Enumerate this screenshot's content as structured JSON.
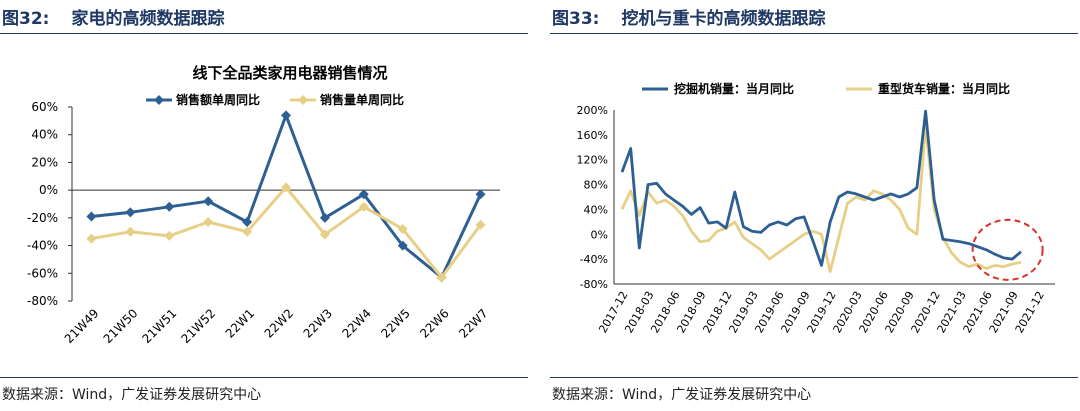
{
  "left": {
    "fig_num": "图32:",
    "fig_title": "家电的高频数据跟踪",
    "source": "数据来源：Wind，广发证券发展研究中心"
  },
  "right": {
    "fig_num": "图33:",
    "fig_title": "挖机与重卡的高频数据跟踪",
    "source": "数据来源：Wind，广发证券发展研究中心"
  },
  "colors": {
    "navy": "#2e5f93",
    "gold": "#e8cf86",
    "title": "#1f3864",
    "highlight": "#d9312b"
  },
  "chart_data": [
    {
      "type": "line",
      "title": "线下全品类家用电器销售情况",
      "xlabel": "",
      "ylabel": "",
      "categories": [
        "21W49",
        "21W50",
        "21W51",
        "21W52",
        "22W1",
        "22W2",
        "22W3",
        "22W4",
        "22W5",
        "22W6",
        "22W7"
      ],
      "ylim": [
        -80,
        60
      ],
      "yticks": [
        "60%",
        "40%",
        "20%",
        "0%",
        "-20%",
        "-40%",
        "-60%",
        "-80%"
      ],
      "legend_position": "top",
      "series": [
        {
          "name": "销售额单周同比",
          "values": [
            -19,
            -16,
            -12,
            -8,
            -23,
            54,
            -20,
            -3,
            -40,
            -63,
            -3
          ]
        },
        {
          "name": "销售量单周同比",
          "values": [
            -35,
            -30,
            -33,
            -23,
            -30,
            2,
            -32,
            -12,
            -28,
            -63,
            -25
          ]
        }
      ]
    },
    {
      "type": "line",
      "title": "",
      "xlabel": "",
      "ylabel": "",
      "ylim": [
        -80,
        200
      ],
      "yticks": [
        "200%",
        "160%",
        "120%",
        "80%",
        "40%",
        "0%",
        "-40%",
        "-80%"
      ],
      "xtick_labels": [
        "2017-12",
        "2018-03",
        "2018-06",
        "2018-09",
        "2018-12",
        "2019-03",
        "2019-06",
        "2019-09",
        "2019-12",
        "2020-03",
        "2020-06",
        "2020-09",
        "2020-12",
        "2021-03",
        "2021-06",
        "2021-09",
        "2021-12"
      ],
      "legend_position": "top",
      "annotation": "red dashed circle highlighting 2021-07 to 2021-12 decline",
      "series": [
        {
          "name": "挖掘机销量：当月同比",
          "x_start": "2017-12",
          "values": [
            100,
            138,
            -22,
            80,
            82,
            65,
            55,
            45,
            32,
            43,
            18,
            20,
            10,
            68,
            12,
            5,
            3,
            15,
            20,
            15,
            25,
            28,
            -10,
            -50,
            20,
            60,
            68,
            65,
            60,
            55,
            60,
            65,
            60,
            65,
            75,
            198,
            55,
            -8,
            -10,
            -12,
            -15,
            -20,
            -25,
            -32,
            -38,
            -40,
            -28
          ]
        },
        {
          "name": "重型货车销量：当月同比",
          "x_start": "2017-12",
          "values": [
            40,
            70,
            30,
            68,
            50,
            55,
            45,
            30,
            5,
            -12,
            -10,
            5,
            10,
            20,
            -5,
            -15,
            -25,
            -40,
            -30,
            -20,
            -10,
            0,
            5,
            0,
            -60,
            -5,
            50,
            60,
            55,
            70,
            65,
            55,
            40,
            10,
            0,
            175,
            40,
            -5,
            -30,
            -45,
            -52,
            -48,
            -55,
            -50,
            -52,
            -48,
            -45
          ]
        }
      ]
    }
  ]
}
